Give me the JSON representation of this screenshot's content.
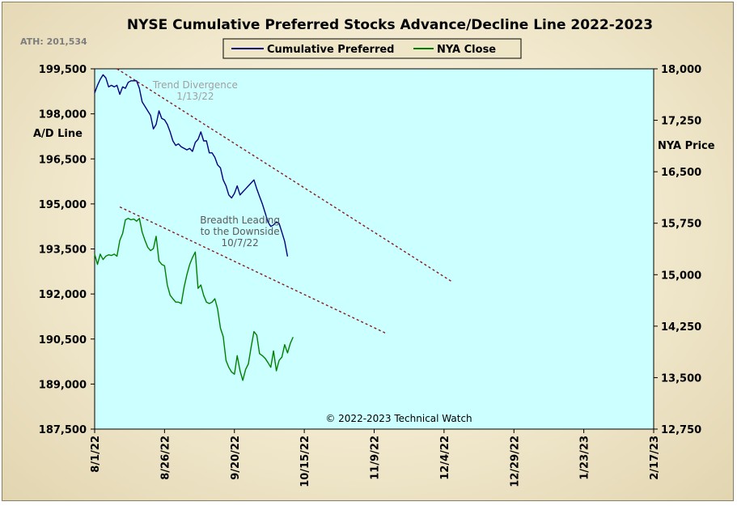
{
  "chart_data": {
    "type": "line",
    "title": "NYSE Cumulative  Preferred Stocks Advance/Decline  Line 2022-2023",
    "ath_label": "ATH: 201,534",
    "left_axis": {
      "label": "A/D Line",
      "ylim": [
        187500,
        199500
      ],
      "ticks": [
        "199,500",
        "198,000",
        "196,500",
        "195,000",
        "193,500",
        "192,000",
        "190,500",
        "189,000",
        "187,500"
      ]
    },
    "right_axis": {
      "label": "NYA Price",
      "ylim": [
        12750,
        18000
      ],
      "ticks": [
        "18,000",
        "17,250",
        "16,500",
        "15,750",
        "15,000",
        "14,250",
        "13,500",
        "12,750"
      ]
    },
    "x_axis": {
      "range_days": [
        0,
        200
      ],
      "ticks": [
        {
          "label": "8/1/22",
          "day": 0
        },
        {
          "label": "8/26/22",
          "day": 25
        },
        {
          "label": "9/20/22",
          "day": 50
        },
        {
          "label": "10/15/22",
          "day": 75
        },
        {
          "label": "11/9/22",
          "day": 100
        },
        {
          "label": "12/4/22",
          "day": 125
        },
        {
          "label": "12/29/22",
          "day": 150
        },
        {
          "label": "1/23/23",
          "day": 175
        },
        {
          "label": "2/17/23",
          "day": 200
        }
      ]
    },
    "legend": {
      "placement": "top-center",
      "entries": [
        "Cumulative Preferred",
        "NYA Close"
      ]
    },
    "series": [
      {
        "name": "Cumulative Preferred",
        "axis": "left",
        "color": "#000080",
        "points": [
          [
            0,
            198700
          ],
          [
            1,
            198950
          ],
          [
            2,
            199150
          ],
          [
            3,
            199300
          ],
          [
            4,
            199200
          ],
          [
            5,
            198900
          ],
          [
            6,
            198950
          ],
          [
            7,
            198900
          ],
          [
            8,
            198950
          ],
          [
            9,
            198650
          ],
          [
            10,
            198900
          ],
          [
            11,
            198850
          ],
          [
            12,
            199050
          ],
          [
            13,
            199100
          ],
          [
            15,
            199100
          ],
          [
            16,
            198850
          ],
          [
            17,
            198400
          ],
          [
            18,
            198250
          ],
          [
            19,
            198100
          ],
          [
            20,
            197950
          ],
          [
            21,
            197500
          ],
          [
            22,
            197650
          ],
          [
            23,
            198100
          ],
          [
            24,
            197850
          ],
          [
            25,
            197800
          ],
          [
            26,
            197650
          ],
          [
            27,
            197400
          ],
          [
            28,
            197100
          ],
          [
            29,
            196950
          ],
          [
            30,
            197000
          ],
          [
            31,
            196900
          ],
          [
            32,
            196850
          ],
          [
            33,
            196800
          ],
          [
            34,
            196850
          ],
          [
            35,
            196750
          ],
          [
            36,
            197050
          ],
          [
            37,
            197150
          ],
          [
            38,
            197400
          ],
          [
            39,
            197100
          ],
          [
            40,
            197100
          ],
          [
            41,
            196700
          ],
          [
            42,
            196700
          ],
          [
            43,
            196550
          ],
          [
            44,
            196300
          ],
          [
            45,
            196200
          ],
          [
            46,
            195800
          ],
          [
            47,
            195600
          ],
          [
            48,
            195300
          ],
          [
            49,
            195200
          ],
          [
            50,
            195350
          ],
          [
            51,
            195600
          ],
          [
            52,
            195300
          ],
          [
            53,
            195400
          ],
          [
            54,
            195500
          ],
          [
            55,
            195600
          ],
          [
            56,
            195700
          ],
          [
            57,
            195800
          ],
          [
            58,
            195500
          ],
          [
            59,
            195250
          ],
          [
            60,
            195000
          ],
          [
            61,
            194700
          ],
          [
            62,
            194400
          ],
          [
            63,
            194250
          ],
          [
            64,
            194300
          ],
          [
            65,
            194400
          ],
          [
            66,
            194350
          ],
          [
            67,
            194050
          ],
          [
            68,
            193750
          ],
          [
            69,
            193250
          ]
        ]
      },
      {
        "name": "NYA Close",
        "axis": "right",
        "color": "#008000",
        "points": [
          [
            0,
            15300
          ],
          [
            1,
            15150
          ],
          [
            2,
            15300
          ],
          [
            3,
            15220
          ],
          [
            4,
            15270
          ],
          [
            5,
            15290
          ],
          [
            6,
            15280
          ],
          [
            7,
            15300
          ],
          [
            8,
            15270
          ],
          [
            9,
            15500
          ],
          [
            10,
            15600
          ],
          [
            11,
            15800
          ],
          [
            12,
            15820
          ],
          [
            13,
            15800
          ],
          [
            14,
            15810
          ],
          [
            15,
            15780
          ],
          [
            16,
            15820
          ],
          [
            17,
            15620
          ],
          [
            18,
            15500
          ],
          [
            19,
            15400
          ],
          [
            20,
            15350
          ],
          [
            21,
            15380
          ],
          [
            22,
            15560
          ],
          [
            23,
            15200
          ],
          [
            24,
            15150
          ],
          [
            25,
            15130
          ],
          [
            26,
            14850
          ],
          [
            27,
            14700
          ],
          [
            28,
            14650
          ],
          [
            29,
            14600
          ],
          [
            30,
            14600
          ],
          [
            31,
            14580
          ],
          [
            32,
            14820
          ],
          [
            33,
            15000
          ],
          [
            34,
            15150
          ],
          [
            35,
            15250
          ],
          [
            36,
            15330
          ],
          [
            37,
            14800
          ],
          [
            38,
            14850
          ],
          [
            39,
            14700
          ],
          [
            40,
            14600
          ],
          [
            41,
            14580
          ],
          [
            42,
            14600
          ],
          [
            43,
            14650
          ],
          [
            44,
            14500
          ],
          [
            45,
            14220
          ],
          [
            46,
            14100
          ],
          [
            47,
            13750
          ],
          [
            48,
            13650
          ],
          [
            49,
            13580
          ],
          [
            50,
            13550
          ],
          [
            51,
            13820
          ],
          [
            52,
            13600
          ],
          [
            53,
            13460
          ],
          [
            54,
            13620
          ],
          [
            55,
            13700
          ],
          [
            56,
            13950
          ],
          [
            57,
            14170
          ],
          [
            58,
            14120
          ],
          [
            59,
            13850
          ],
          [
            60,
            13820
          ],
          [
            61,
            13780
          ],
          [
            62,
            13720
          ],
          [
            63,
            13650
          ],
          [
            64,
            13890
          ],
          [
            65,
            13600
          ],
          [
            66,
            13750
          ],
          [
            67,
            13800
          ],
          [
            68,
            13980
          ],
          [
            69,
            13860
          ],
          [
            70,
            14000
          ],
          [
            71,
            14090
          ]
        ]
      }
    ],
    "trendlines": [
      {
        "axis": "left",
        "style": "dashed",
        "color": "#8b1a1a",
        "points": [
          [
            8,
            199500
          ],
          [
            128,
            192400
          ]
        ]
      },
      {
        "axis": "left",
        "style": "dashed",
        "color": "#8b1a1a",
        "points": [
          [
            9,
            194900
          ],
          [
            104,
            190700
          ]
        ]
      }
    ],
    "annotations": [
      {
        "lines": [
          "Trend  Divergence",
          "1/13/22"
        ],
        "color": "#a0a0a0",
        "axis": "left",
        "day": 36,
        "value": 198850
      },
      {
        "lines": [
          "Breadth Leading",
          "to the Downside",
          "10/7/22"
        ],
        "color": "#5a5a5a",
        "axis": "left",
        "day": 52,
        "value": 194350
      }
    ],
    "copyright": "© 2022-2023  Technical  Watch"
  },
  "colors": {
    "plot_bg": "#ccffff",
    "trend": "#8b1a1a"
  }
}
